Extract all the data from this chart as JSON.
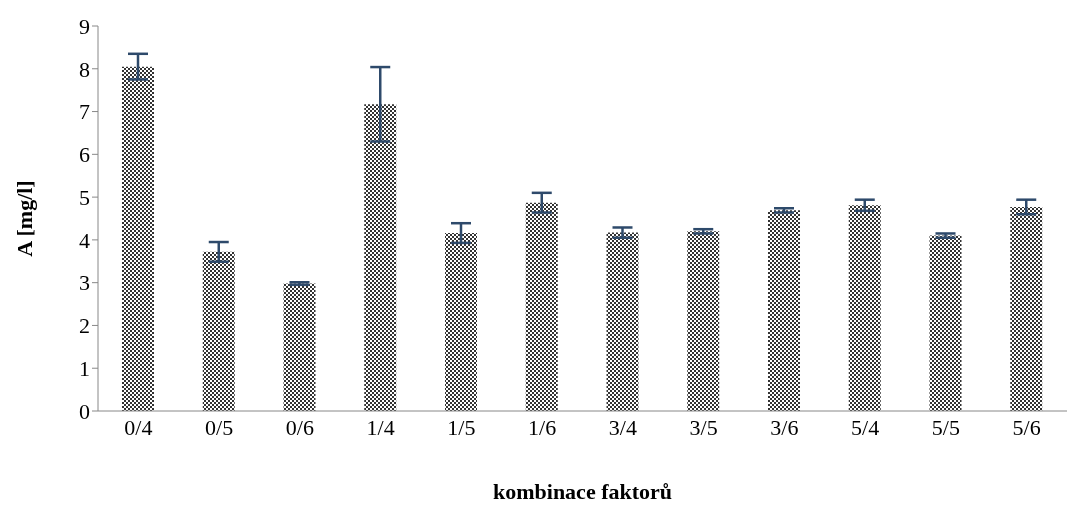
{
  "chart_data": {
    "type": "bar",
    "xlabel": "kombinace faktorů",
    "ylabel": "A [mg/l]",
    "categories": [
      "0/4",
      "0/5",
      "0/6",
      "1/4",
      "1/5",
      "1/6",
      "3/4",
      "3/5",
      "3/6",
      "5/4",
      "5/5",
      "5/6"
    ],
    "values": [
      8.05,
      3.72,
      2.98,
      7.17,
      4.16,
      4.87,
      4.17,
      4.2,
      4.69,
      4.81,
      4.1,
      4.77
    ],
    "errors": [
      0.3,
      0.23,
      0.03,
      0.87,
      0.23,
      0.23,
      0.12,
      0.05,
      0.05,
      0.13,
      0.05,
      0.17
    ],
    "color": "#333333",
    "ylim": [
      0,
      9
    ],
    "yticks": [
      0,
      1,
      2,
      3,
      4,
      5,
      6,
      7,
      8,
      9
    ],
    "grid": false,
    "legend": false
  }
}
